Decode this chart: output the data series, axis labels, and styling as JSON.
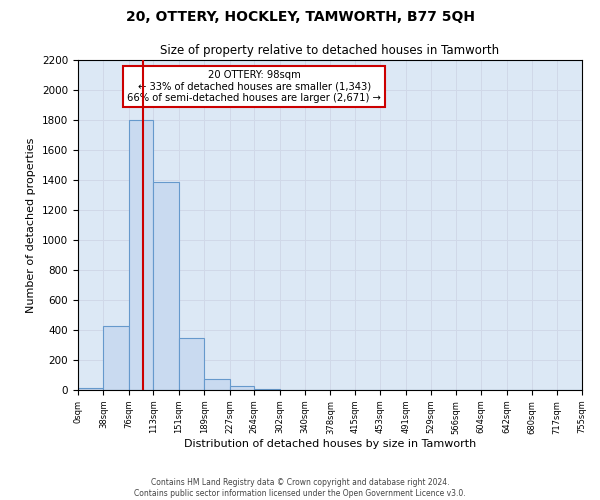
{
  "title": "20, OTTERY, HOCKLEY, TAMWORTH, B77 5QH",
  "subtitle": "Size of property relative to detached houses in Tamworth",
  "xlabel": "Distribution of detached houses by size in Tamworth",
  "ylabel": "Number of detached properties",
  "bin_edges": [
    0,
    38,
    76,
    113,
    151,
    189,
    227,
    264,
    302,
    340,
    378,
    415,
    453,
    491,
    529,
    566,
    604,
    642,
    680,
    717,
    755
  ],
  "bar_heights": [
    15,
    425,
    1800,
    1390,
    350,
    75,
    25,
    5,
    0,
    0,
    0,
    0,
    0,
    0,
    0,
    0,
    0,
    0,
    0,
    0
  ],
  "bar_color": "#c9daf0",
  "bar_edge_color": "#6699cc",
  "property_value": 98,
  "vline_color": "#cc0000",
  "annotation_box_color": "#cc0000",
  "annotation_text_line1": "20 OTTERY: 98sqm",
  "annotation_text_line2": "← 33% of detached houses are smaller (1,343)",
  "annotation_text_line3": "66% of semi-detached houses are larger (2,671) →",
  "ylim": [
    0,
    2200
  ],
  "yticks": [
    0,
    200,
    400,
    600,
    800,
    1000,
    1200,
    1400,
    1600,
    1800,
    2000,
    2200
  ],
  "tick_labels": [
    "0sqm",
    "38sqm",
    "76sqm",
    "113sqm",
    "151sqm",
    "189sqm",
    "227sqm",
    "264sqm",
    "302sqm",
    "340sqm",
    "378sqm",
    "415sqm",
    "453sqm",
    "491sqm",
    "529sqm",
    "566sqm",
    "604sqm",
    "642sqm",
    "680sqm",
    "717sqm",
    "755sqm"
  ],
  "footer_line1": "Contains HM Land Registry data © Crown copyright and database right 2024.",
  "footer_line2": "Contains public sector information licensed under the Open Government Licence v3.0.",
  "grid_color": "#d0d8e8",
  "background_color": "#dce8f5"
}
